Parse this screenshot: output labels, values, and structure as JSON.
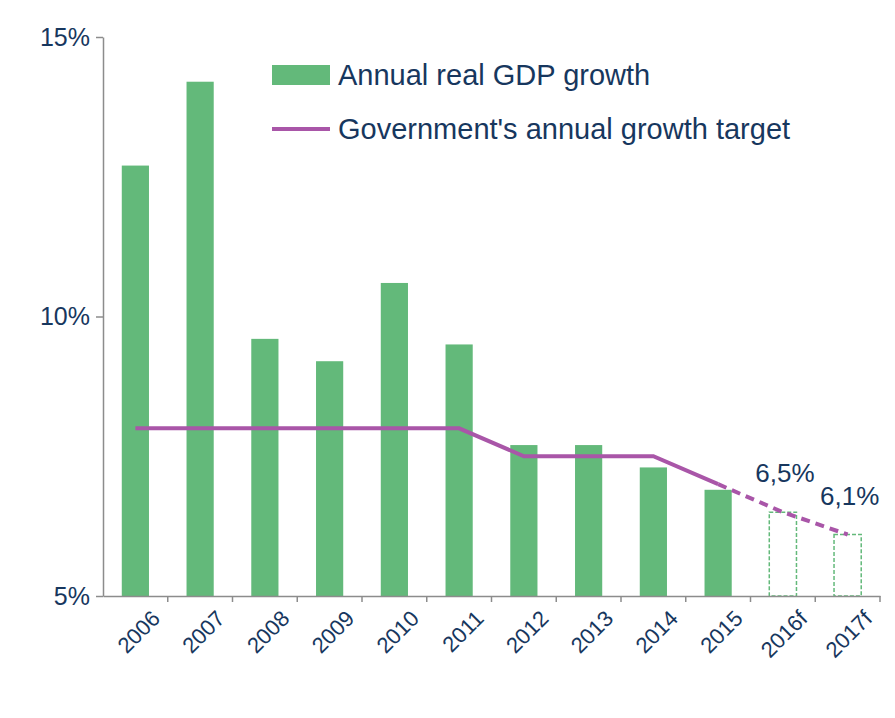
{
  "chart_data": {
    "type": "bar",
    "categories": [
      "2006",
      "2007",
      "2008",
      "2009",
      "2010",
      "2011",
      "2012",
      "2013",
      "2014",
      "2015",
      "2016f",
      "2017f"
    ],
    "series": [
      {
        "name": "Annual real GDP growth",
        "type": "bar",
        "color": "#63b97a",
        "values": [
          12.7,
          14.2,
          9.6,
          9.2,
          10.6,
          9.5,
          7.7,
          7.7,
          7.3,
          6.9,
          6.5,
          6.1
        ]
      },
      {
        "name": "Government's annual growth target",
        "type": "line",
        "color": "#a956a8",
        "values": [
          8,
          8,
          8,
          8,
          8,
          8,
          7.5,
          7.5,
          7.5,
          7,
          6.5,
          6.1
        ],
        "data_labels": true,
        "value_labels": [
          null,
          null,
          null,
          null,
          null,
          null,
          null,
          null,
          null,
          null,
          "6,5%",
          "6,1%"
        ]
      }
    ],
    "ylim": [
      5,
      15
    ],
    "yticks": [
      {
        "value": 5,
        "label": "5%"
      },
      {
        "value": 10,
        "label": "10%"
      },
      {
        "value": 15,
        "label": "15%"
      }
    ],
    "grid": false,
    "legend": "top"
  }
}
